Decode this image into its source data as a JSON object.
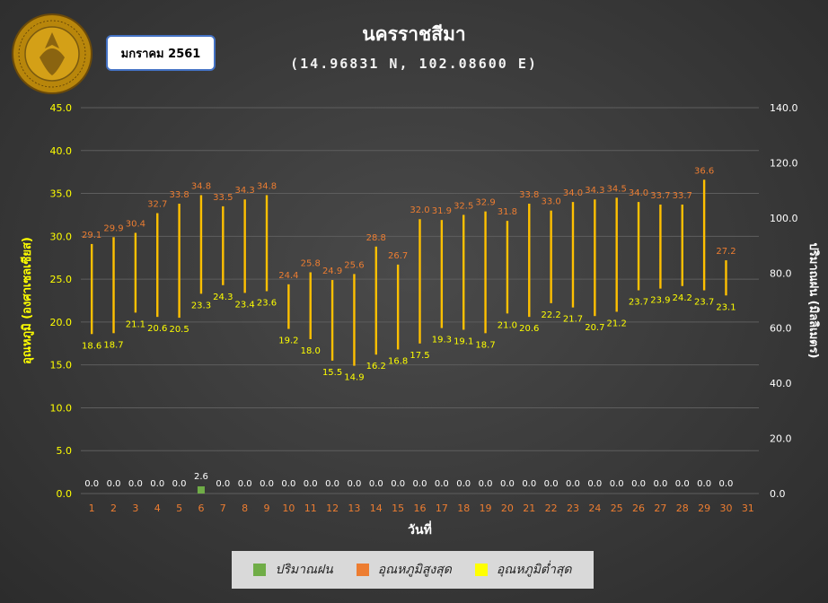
{
  "header": {
    "title": "นครราชสีมา",
    "coords": "(14.96831 N, 102.08600 E)",
    "month": "มกราคม 2561",
    "logo_text": "กรมอุตุนิยมวิทยา METEOROLOGICAL DEPARTMENT"
  },
  "legend": {
    "rain": "ปริมาณฝน",
    "tmax": "อุณหภูมิสูงสุด",
    "tmin": "อุณหภูมิต่ำสุด"
  },
  "colors": {
    "rain": "#70ad47",
    "range": "#ffc000",
    "tmax_label": "#ed7d31",
    "tmin_label": "#ffff00",
    "left_axis": "#ffff00",
    "right_axis": "#ffffff",
    "x_ticks": "#ed7d31",
    "rain_label": "#ffffff"
  },
  "chart_data": {
    "type": "bar",
    "xlabel": "วันที่",
    "ylabel": "อุณหภูมิ (องศาเซลเซียส)",
    "y2label": "ปริมาณฝน (มิลลิเมตร)",
    "ylim": [
      0,
      45
    ],
    "y2lim": [
      0,
      140
    ],
    "yticks": [
      "0.0",
      "5.0",
      "10.0",
      "15.0",
      "20.0",
      "25.0",
      "30.0",
      "35.0",
      "40.0",
      "45.0"
    ],
    "y2ticks": [
      "0.0",
      "20.0",
      "40.0",
      "60.0",
      "80.0",
      "100.0",
      "120.0",
      "140.0"
    ],
    "grid": true,
    "legend_position": "bottom",
    "categories": [
      "1",
      "2",
      "3",
      "4",
      "5",
      "6",
      "7",
      "8",
      "9",
      "10",
      "11",
      "12",
      "13",
      "14",
      "15",
      "16",
      "17",
      "18",
      "19",
      "20",
      "21",
      "22",
      "23",
      "24",
      "25",
      "26",
      "27",
      "28",
      "29",
      "30",
      "31"
    ],
    "series": [
      {
        "name": "ปริมาณฝน",
        "axis": "right",
        "values": [
          0.0,
          0.0,
          0.0,
          0.0,
          0.0,
          2.6,
          0.0,
          0.0,
          0.0,
          0.0,
          0.0,
          0.0,
          0.0,
          0.0,
          0.0,
          0.0,
          0.0,
          0.0,
          0.0,
          0.0,
          0.0,
          0.0,
          0.0,
          0.0,
          0.0,
          0.0,
          0.0,
          0.0,
          0.0,
          0.0,
          0.0
        ]
      },
      {
        "name": "อุณหภูมิสูงสุด",
        "axis": "left",
        "values": [
          29.1,
          29.9,
          30.4,
          32.7,
          33.8,
          34.8,
          33.5,
          34.3,
          34.8,
          24.4,
          25.8,
          24.9,
          25.6,
          28.8,
          26.7,
          32.0,
          31.9,
          32.5,
          32.9,
          31.8,
          33.8,
          33.0,
          34.0,
          34.3,
          34.5,
          34.0,
          33.7,
          33.7,
          36.6,
          27.2,
          null
        ]
      },
      {
        "name": "อุณหภูมิต่ำสุด",
        "axis": "left",
        "values": [
          18.6,
          18.7,
          21.1,
          20.6,
          20.5,
          23.3,
          24.3,
          23.4,
          23.6,
          19.2,
          18.0,
          15.5,
          14.9,
          16.2,
          16.8,
          17.5,
          19.3,
          19.1,
          18.7,
          21.0,
          20.6,
          22.2,
          21.7,
          20.7,
          21.2,
          23.7,
          23.9,
          24.2,
          23.7,
          23.1,
          null
        ]
      }
    ]
  }
}
